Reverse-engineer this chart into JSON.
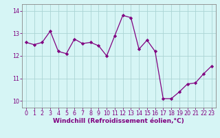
{
  "x": [
    0,
    1,
    2,
    3,
    4,
    5,
    6,
    7,
    8,
    9,
    10,
    11,
    12,
    13,
    14,
    15,
    16,
    17,
    18,
    19,
    20,
    21,
    22,
    23
  ],
  "y": [
    12.6,
    12.5,
    12.6,
    13.1,
    12.2,
    12.1,
    12.75,
    12.55,
    12.6,
    12.45,
    12.0,
    12.9,
    13.8,
    13.7,
    12.3,
    12.7,
    12.2,
    10.1,
    10.1,
    10.4,
    10.75,
    10.8,
    11.2,
    11.55
  ],
  "line_color": "#800080",
  "marker": "D",
  "marker_size": 2.2,
  "bg_color": "#d6f5f5",
  "grid_color": "#aad4d4",
  "xlabel": "Windchill (Refroidissement éolien,°C)",
  "xlabel_fontsize": 6.5,
  "ylim": [
    9.7,
    14.3
  ],
  "xlim": [
    -0.5,
    23.5
  ],
  "yticks": [
    10,
    11,
    12,
    13,
    14
  ],
  "xticks": [
    0,
    1,
    2,
    3,
    4,
    5,
    6,
    7,
    8,
    9,
    10,
    11,
    12,
    13,
    14,
    15,
    16,
    17,
    18,
    19,
    20,
    21,
    22,
    23
  ],
  "tick_fontsize": 5.8
}
